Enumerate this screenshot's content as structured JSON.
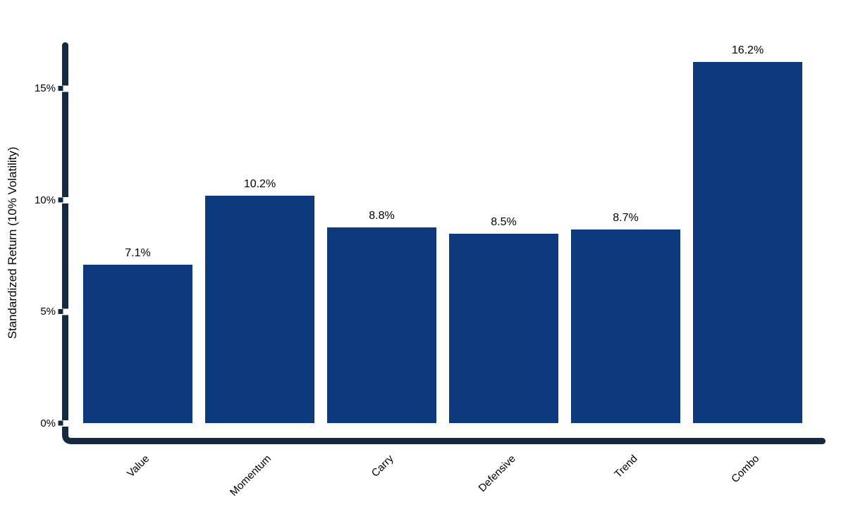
{
  "chart_data": {
    "type": "bar",
    "categories": [
      "Value",
      "Momentum",
      "Carry",
      "Defensive",
      "Trend",
      "Combo"
    ],
    "values": [
      7.1,
      10.2,
      8.8,
      8.5,
      8.7,
      16.2
    ],
    "value_labels": [
      "7.1%",
      "10.2%",
      "8.8%",
      "8.5%",
      "8.7%",
      "16.2%"
    ],
    "title": "",
    "xlabel": "",
    "ylabel": "Standardized Return (10% Volatility)",
    "ylim": [
      0,
      17
    ],
    "yticks": [
      0,
      5,
      10,
      15
    ],
    "ytick_labels": [
      "0%",
      "5%",
      "10%",
      "15%"
    ],
    "grid": false,
    "legend": null,
    "colors": {
      "bar": "#0d3a7d",
      "axis": "#15293f",
      "text": "#000000",
      "background": "#ffffff"
    }
  }
}
